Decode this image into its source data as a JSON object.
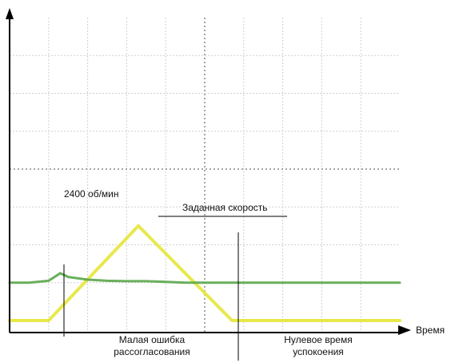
{
  "chart_data": {
    "type": "line",
    "xlabel": "Время",
    "ylabel": "",
    "grid": true,
    "xlim": [
      0,
      10
    ],
    "ylim": [
      0,
      8
    ],
    "series": [
      {
        "color": "#e6e63a",
        "x": [
          0,
          1,
          3.3,
          5.7,
          10
        ],
        "y": [
          0,
          0,
          2.5,
          0,
          0
        ]
      },
      {
        "color": "#5aa64a",
        "x": [
          0,
          0.5,
          1.0,
          1.3,
          1.5,
          2.0,
          2.5,
          3.0,
          3.5,
          4.0,
          4.5,
          5.0,
          6.0,
          7.0,
          8.0,
          9.0,
          10.0
        ],
        "y": [
          1.0,
          1.0,
          1.05,
          1.25,
          1.15,
          1.08,
          1.05,
          1.04,
          1.04,
          1.02,
          1.0,
          1.0,
          1.0,
          1.0,
          1.0,
          1.0,
          1.0
        ]
      }
    ],
    "annotations": {
      "peak": "2400 об/мин",
      "set_speed": "Заданная скорость",
      "small_error_line1": "Малая ошибка",
      "small_error_line2": "рассогласования",
      "zero_settle_line1": "Нулевое время",
      "zero_settle_line2": "успокоения"
    }
  },
  "colors": {
    "axis": "#000000",
    "grid": "#d0d0d0",
    "grid_center": "#8a8a8a",
    "annotation_line": "#000000"
  }
}
